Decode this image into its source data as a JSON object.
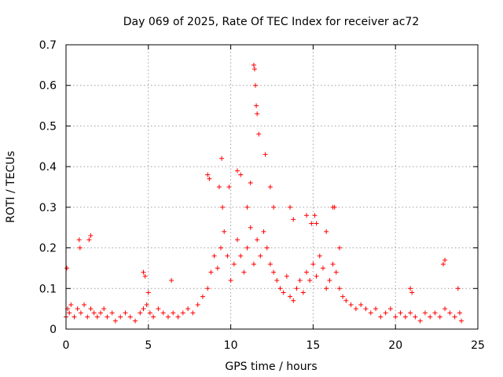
{
  "chart_data": {
    "type": "scatter",
    "title": "Day 069 of 2025, Rate Of TEC Index for receiver ac72",
    "xlabel": "GPS time / hours",
    "ylabel": "ROTI / TECUs",
    "xlim": [
      0,
      25
    ],
    "ylim": [
      0,
      0.7
    ],
    "x_ticks": [
      "0",
      "5",
      "10",
      "15",
      "20",
      "25"
    ],
    "y_ticks": [
      "0",
      "0.1",
      "0.2",
      "0.3",
      "0.4",
      "0.5",
      "0.6",
      "0.7"
    ],
    "grid": true,
    "marker": "plus",
    "color": "#ff0000",
    "series": [
      {
        "x": [
          0.0,
          0.1,
          0.2,
          0.3,
          0.5,
          0.7,
          0.9,
          1.1,
          1.3,
          1.5,
          1.7,
          1.9,
          2.1,
          2.3,
          2.5,
          2.8,
          3.0,
          3.3,
          3.6,
          3.9,
          4.2,
          4.5,
          4.7,
          4.9,
          5.1,
          5.3,
          5.6,
          5.9,
          6.2,
          6.5,
          6.8,
          7.1,
          7.4,
          7.7,
          8.0,
          8.3,
          8.6,
          8.8,
          9.0,
          9.2,
          9.4,
          9.6,
          9.8,
          10.0,
          10.2,
          10.4,
          10.6,
          10.8,
          11.0,
          11.2,
          11.4,
          11.6,
          11.8,
          12.0,
          12.2,
          12.4,
          12.6,
          12.8,
          13.0,
          13.2,
          13.4,
          13.6,
          13.8,
          14.0,
          14.2,
          14.4,
          14.6,
          14.8,
          15.0,
          15.2,
          15.4,
          15.6,
          15.8,
          16.0,
          16.2,
          16.4,
          16.6,
          16.8,
          17.0,
          17.3,
          17.6,
          17.9,
          18.2,
          18.5,
          18.8,
          19.1,
          19.4,
          19.7,
          20.0,
          20.3,
          20.6,
          20.9,
          21.2,
          21.5,
          21.8,
          22.1,
          22.4,
          22.7,
          23.0,
          23.3,
          23.6,
          23.9,
          24.0,
          0.05,
          0.8,
          0.85,
          1.4,
          1.5,
          4.7,
          4.8,
          5.0,
          6.4,
          8.6,
          8.7,
          9.3,
          9.45,
          9.5,
          9.9,
          10.4,
          10.6,
          11.0,
          11.2,
          11.4,
          11.45,
          11.5,
          11.55,
          11.6,
          11.7,
          12.1,
          12.4,
          12.6,
          13.6,
          13.8,
          14.6,
          14.9,
          15.1,
          15.2,
          15.8,
          16.2,
          16.3,
          16.6,
          20.9,
          21.0,
          22.9,
          23.0,
          23.8
        ],
        "y": [
          0.03,
          0.05,
          0.04,
          0.06,
          0.03,
          0.05,
          0.04,
          0.06,
          0.03,
          0.05,
          0.04,
          0.03,
          0.04,
          0.05,
          0.03,
          0.04,
          0.02,
          0.03,
          0.04,
          0.03,
          0.02,
          0.04,
          0.05,
          0.06,
          0.04,
          0.03,
          0.05,
          0.04,
          0.03,
          0.04,
          0.03,
          0.04,
          0.05,
          0.04,
          0.06,
          0.08,
          0.1,
          0.14,
          0.18,
          0.15,
          0.2,
          0.24,
          0.18,
          0.12,
          0.16,
          0.22,
          0.18,
          0.14,
          0.2,
          0.25,
          0.16,
          0.22,
          0.18,
          0.24,
          0.2,
          0.16,
          0.14,
          0.12,
          0.1,
          0.09,
          0.13,
          0.08,
          0.07,
          0.1,
          0.12,
          0.09,
          0.14,
          0.12,
          0.16,
          0.13,
          0.18,
          0.15,
          0.1,
          0.12,
          0.16,
          0.14,
          0.1,
          0.08,
          0.07,
          0.06,
          0.05,
          0.06,
          0.05,
          0.04,
          0.05,
          0.03,
          0.04,
          0.05,
          0.03,
          0.04,
          0.03,
          0.04,
          0.03,
          0.02,
          0.04,
          0.03,
          0.04,
          0.03,
          0.05,
          0.04,
          0.03,
          0.04,
          0.02,
          0.15,
          0.22,
          0.2,
          0.22,
          0.23,
          0.14,
          0.13,
          0.09,
          0.12,
          0.38,
          0.37,
          0.35,
          0.42,
          0.3,
          0.35,
          0.39,
          0.38,
          0.3,
          0.36,
          0.65,
          0.64,
          0.6,
          0.55,
          0.53,
          0.48,
          0.43,
          0.35,
          0.3,
          0.3,
          0.27,
          0.28,
          0.26,
          0.28,
          0.26,
          0.24,
          0.3,
          0.3,
          0.2,
          0.1,
          0.09,
          0.16,
          0.17,
          0.1
        ]
      }
    ]
  }
}
